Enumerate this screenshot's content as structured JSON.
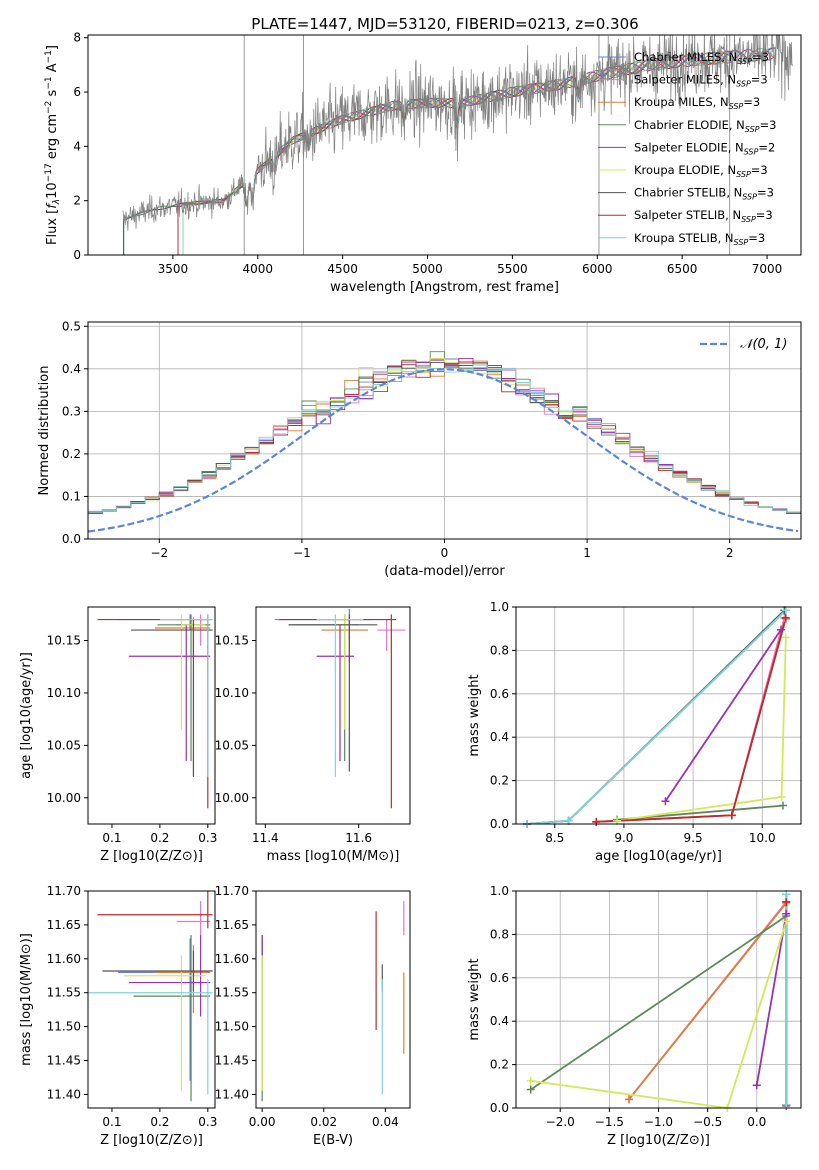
{
  "figure_title": "PLATE=1447, MJD=53120, FIBERID=0213, z=0.306",
  "chart_data": [
    {
      "id": "spectrum",
      "type": "line",
      "title": "PLATE=1447, MJD=53120, FIBERID=0213, z=0.306",
      "xlabel": "wavelength [Angstrom, rest frame]",
      "ylabel": "Flux [f_λ 10^-17 erg cm^-2 s^-1 A^-1]",
      "xlim": [
        3000,
        7200
      ],
      "ylim": [
        0,
        8.1
      ],
      "xticks": [
        3500,
        4000,
        4500,
        5000,
        5500,
        6000,
        6500,
        7000
      ],
      "yticks": [
        0,
        2,
        4,
        6,
        8
      ],
      "grid": false,
      "legend_position": "right",
      "series": [
        {
          "name": "Chabrier MILES, N_SSP=3",
          "color": "#6a7fdb"
        },
        {
          "name": "Salpeter MILES, N_SSP=3",
          "color": "#e377c2"
        },
        {
          "name": "Kroupa MILES, N_SSP=3",
          "color": "#e07b39"
        },
        {
          "name": "Chabrier ELODIE, N_SSP=3",
          "color": "#5a8a5a"
        },
        {
          "name": "Salpeter ELODIE, N_SSP=2",
          "color": "#9b30b0"
        },
        {
          "name": "Kroupa ELODIE, N_SSP=3",
          "color": "#d4e85a"
        },
        {
          "name": "Chabrier STELIB, N_SSP=3",
          "color": "#555555"
        },
        {
          "name": "Salpeter STELIB, N_SSP=3",
          "color": "#c0282d"
        },
        {
          "name": "Kroupa STELIB, N_SSP=3",
          "color": "#7fd4d4"
        }
      ],
      "data_color": "#808080",
      "continuum": [
        [
          3200,
          1.3
        ],
        [
          3400,
          1.7
        ],
        [
          3600,
          1.9
        ],
        [
          3800,
          2.0
        ],
        [
          4000,
          3.1
        ],
        [
          4200,
          4.2
        ],
        [
          4500,
          5.0
        ],
        [
          4800,
          5.5
        ],
        [
          5000,
          5.6
        ],
        [
          5200,
          5.6
        ],
        [
          5500,
          6.0
        ],
        [
          5800,
          6.3
        ],
        [
          6000,
          6.6
        ],
        [
          6300,
          7.0
        ],
        [
          6600,
          7.2
        ],
        [
          7000,
          7.4
        ]
      ]
    },
    {
      "id": "residuals",
      "type": "histogram",
      "xlabel": "(data-model)/error",
      "ylabel": "Normed distribution",
      "xlim": [
        -2.5,
        2.5
      ],
      "ylim": [
        0,
        0.51
      ],
      "xticks": [
        -2,
        -1,
        0,
        1,
        2
      ],
      "yticks": [
        0.0,
        0.1,
        0.2,
        0.3,
        0.4,
        0.5
      ],
      "grid": true,
      "legend_position": "top-right",
      "reference_curve": {
        "name": "N(0,1)",
        "color": "#5b86d9",
        "mean": 0,
        "sigma": 1
      },
      "bin_width": 0.1
    },
    {
      "id": "age_vs_Z",
      "type": "scatter",
      "xlabel": "Z [log10(Z/Z⊙)]",
      "ylabel": "age [log10(age/yr)]",
      "xlim": [
        0.05,
        0.315
      ],
      "ylim": [
        9.975,
        10.182
      ],
      "xticks": [
        0.1,
        0.2,
        0.3
      ],
      "yticks": [
        10.0,
        10.05,
        10.1,
        10.15
      ],
      "grid": false,
      "points": [
        {
          "x": 0.263,
          "y": 10.17,
          "xerr": [
            0.15,
            0.04
          ],
          "yerr": [
            0.01,
            0.005
          ],
          "color": "#6a7fdb"
        },
        {
          "x": 0.285,
          "y": 10.165,
          "xerr": [
            0.05,
            0.02
          ],
          "yerr": [
            0.02,
            0.01
          ],
          "color": "#e377c2"
        },
        {
          "x": 0.27,
          "y": 10.162,
          "xerr": [
            0.08,
            0.035
          ],
          "yerr": [
            0.03,
            0.01
          ],
          "color": "#e07b39"
        },
        {
          "x": 0.265,
          "y": 10.165,
          "xerr": [
            0.07,
            0.04
          ],
          "yerr": [
            0.13,
            0.01
          ],
          "color": "#5a8a5a"
        },
        {
          "x": 0.255,
          "y": 10.135,
          "xerr": [
            0.12,
            0.05
          ],
          "yerr": [
            0.1,
            0.03
          ],
          "color": "#9b30b0"
        },
        {
          "x": 0.245,
          "y": 10.165,
          "xerr": [
            0.0,
            0.05
          ],
          "yerr": [
            0.1,
            0.01
          ],
          "color": "#d4e85a"
        },
        {
          "x": 0.27,
          "y": 10.16,
          "xerr": [
            0.13,
            0.04
          ],
          "yerr": [
            0.14,
            0.01
          ],
          "color": "#555555"
        },
        {
          "x": 0.3,
          "y": 10.17,
          "xerr": [
            0.23,
            0.01
          ],
          "yerr": [
            0.18,
            0.005
          ],
          "color": "#c0282d"
        },
        {
          "x": 0.3,
          "y": 10.17,
          "xerr": [
            0.1,
            0.01
          ],
          "yerr": [
            0.15,
            0.005
          ],
          "color": "#7fd4d4"
        }
      ]
    },
    {
      "id": "age_vs_mass",
      "type": "scatter",
      "xlabel": "mass [log10(M/M⊙)]",
      "ylabel": "",
      "xlim": [
        11.38,
        11.71
      ],
      "ylim": [
        9.975,
        10.182
      ],
      "xticks": [
        11.4,
        11.6
      ],
      "yticks": [
        10.0,
        10.05,
        10.1,
        10.15
      ],
      "grid": false,
      "points": [
        {
          "x": 11.58,
          "y": 10.17,
          "xerr": [
            0.16,
            0.05
          ],
          "yerr": [
            0.02,
            0.01
          ],
          "color": "#6a7fdb"
        },
        {
          "x": 11.66,
          "y": 10.16,
          "xerr": [
            0.02,
            0.04
          ],
          "yerr": [
            0.02,
            0.01
          ],
          "color": "#e377c2"
        },
        {
          "x": 11.58,
          "y": 10.16,
          "xerr": [
            0.06,
            0.04
          ],
          "yerr": [
            0.03,
            0.01
          ],
          "color": "#e07b39"
        },
        {
          "x": 11.57,
          "y": 10.165,
          "xerr": [
            0.12,
            0.03
          ],
          "yerr": [
            0.13,
            0.01
          ],
          "color": "#5a8a5a"
        },
        {
          "x": 11.56,
          "y": 10.135,
          "xerr": [
            0.05,
            0.03
          ],
          "yerr": [
            0.1,
            0.03
          ],
          "color": "#9b30b0"
        },
        {
          "x": 11.57,
          "y": 10.165,
          "xerr": [
            0.02,
            0.02
          ],
          "yerr": [
            0.1,
            0.01
          ],
          "color": "#d4e85a"
        },
        {
          "x": 11.58,
          "y": 10.165,
          "xerr": [
            0.13,
            0.06
          ],
          "yerr": [
            0.14,
            0.01
          ],
          "color": "#555555"
        },
        {
          "x": 11.67,
          "y": 10.17,
          "xerr": [
            0.24,
            0.01
          ],
          "yerr": [
            0.18,
            0.005
          ],
          "color": "#c0282d"
        },
        {
          "x": 11.55,
          "y": 10.17,
          "xerr": [
            0.04,
            0.06
          ],
          "yerr": [
            0.15,
            0.005
          ],
          "color": "#7fd4d4"
        }
      ]
    },
    {
      "id": "weight_vs_age",
      "type": "line",
      "xlabel": "age [log10(age/yr)]",
      "ylabel": "mass weight",
      "xlim": [
        8.22,
        10.28
      ],
      "ylim": [
        0,
        1.0
      ],
      "xticks": [
        8.5,
        9.0,
        9.5,
        10.0
      ],
      "yticks": [
        0.0,
        0.2,
        0.4,
        0.6,
        0.8,
        1.0
      ],
      "grid": true,
      "series": [
        {
          "color": "#6a7fdb",
          "x": [
            8.3,
            8.6,
            10.17
          ],
          "y": [
            0.0,
            0.015,
            0.985
          ]
        },
        {
          "color": "#e377c2",
          "x": [
            8.8,
            9.78,
            10.16
          ],
          "y": [
            0.01,
            0.04,
            0.95
          ]
        },
        {
          "color": "#e07b39",
          "x": [
            8.8,
            9.78,
            10.17
          ],
          "y": [
            0.01,
            0.04,
            0.945
          ]
        },
        {
          "color": "#5a8a5a",
          "x": [
            8.95,
            10.15
          ],
          "y": [
            0.02,
            0.085
          ]
        },
        {
          "color": "#9b30b0",
          "x": [
            9.3,
            10.135
          ],
          "y": [
            0.105,
            0.895
          ]
        },
        {
          "color": "#d4e85a",
          "x": [
            8.95,
            10.14,
            10.17
          ],
          "y": [
            0.015,
            0.125,
            0.86
          ]
        },
        {
          "color": "#555555",
          "x": [
            8.3,
            8.6,
            10.16
          ],
          "y": [
            0.0,
            0.015,
            0.985
          ]
        },
        {
          "color": "#c0282d",
          "x": [
            8.8,
            9.78,
            10.17
          ],
          "y": [
            0.01,
            0.04,
            0.95
          ]
        },
        {
          "color": "#7fd4d4",
          "x": [
            8.3,
            8.6,
            10.17
          ],
          "y": [
            0.0,
            0.015,
            0.985
          ]
        }
      ]
    },
    {
      "id": "mass_vs_Z",
      "type": "scatter",
      "xlabel": "Z [log10(Z/Z⊙)]",
      "ylabel": "mass [log10(M/M⊙)]",
      "xlim": [
        0.05,
        0.315
      ],
      "ylim": [
        11.38,
        11.7
      ],
      "xticks": [
        0.1,
        0.2,
        0.3
      ],
      "yticks": [
        11.4,
        11.45,
        11.5,
        11.55,
        11.6,
        11.65,
        11.7
      ],
      "grid": false,
      "points": [
        {
          "x": 0.263,
          "y": 11.58,
          "xerr": [
            0.15,
            0.04
          ],
          "yerr": [
            0.16,
            0.05
          ],
          "color": "#6a7fdb"
        },
        {
          "x": 0.285,
          "y": 11.655,
          "xerr": [
            0.05,
            0.02
          ],
          "yerr": [
            0.02,
            0.03
          ],
          "color": "#e377c2"
        },
        {
          "x": 0.27,
          "y": 11.58,
          "xerr": [
            0.08,
            0.035
          ],
          "yerr": [
            0.06,
            0.04
          ],
          "color": "#e07b39"
        },
        {
          "x": 0.265,
          "y": 11.545,
          "xerr": [
            0.12,
            0.04
          ],
          "yerr": [
            0.155,
            0.09
          ],
          "color": "#5a8a5a"
        },
        {
          "x": 0.285,
          "y": 11.565,
          "xerr": [
            0.15,
            0.02
          ],
          "yerr": [
            0.05,
            0.07
          ],
          "color": "#9b30b0"
        },
        {
          "x": 0.245,
          "y": 11.575,
          "xerr": [
            0.12,
            0.05
          ],
          "yerr": [
            0.17,
            0.03
          ],
          "color": "#d4e85a"
        },
        {
          "x": 0.27,
          "y": 11.582,
          "xerr": [
            0.19,
            0.04
          ],
          "yerr": [
            0.03,
            0.03
          ],
          "color": "#555555"
        },
        {
          "x": 0.3,
          "y": 11.665,
          "xerr": [
            0.23,
            0.01
          ],
          "yerr": [
            0.02,
            0.04
          ],
          "color": "#c0282d"
        },
        {
          "x": 0.3,
          "y": 11.55,
          "xerr": [
            0.25,
            0.01
          ],
          "yerr": [
            0.15,
            0.02
          ],
          "color": "#7fd4d4"
        }
      ]
    },
    {
      "id": "mass_vs_ebv",
      "type": "scatter",
      "xlabel": "E(B-V)",
      "ylabel": "",
      "xlim": [
        -0.002,
        0.048
      ],
      "ylim": [
        11.38,
        11.7
      ],
      "xticks": [
        0.0,
        0.02,
        0.04
      ],
      "yticks": [
        11.4,
        11.45,
        11.5,
        11.55,
        11.6,
        11.65,
        11.7
      ],
      "grid": false,
      "points": [
        {
          "x": 0.0,
          "y": 11.58,
          "yerr": [
            0.16,
            0.05
          ],
          "color": "#6a7fdb"
        },
        {
          "x": 0.046,
          "y": 11.655,
          "yerr": [
            0.02,
            0.03
          ],
          "color": "#e377c2"
        },
        {
          "x": 0.046,
          "y": 11.58,
          "yerr": [
            0.12,
            0.0
          ],
          "color": "#e07b39"
        },
        {
          "x": 0.0,
          "y": 11.545,
          "yerr": [
            0.155,
            0.09
          ],
          "color": "#5a8a5a"
        },
        {
          "x": 0.0,
          "y": 11.62,
          "yerr": [
            0.02,
            0.015
          ],
          "color": "#9b30b0"
        },
        {
          "x": 0.0,
          "y": 11.575,
          "yerr": [
            0.17,
            0.03
          ],
          "color": "#d4e85a"
        },
        {
          "x": 0.039,
          "y": 11.582,
          "yerr": [
            0.03,
            0.01
          ],
          "color": "#555555"
        },
        {
          "x": 0.037,
          "y": 11.58,
          "yerr": [
            0.085,
            0.09
          ],
          "color": "#c0282d"
        },
        {
          "x": 0.039,
          "y": 11.55,
          "yerr": [
            0.15,
            0.02
          ],
          "color": "#7fd4d4"
        }
      ]
    },
    {
      "id": "weight_vs_Z",
      "type": "line",
      "xlabel": "Z [log10(Z/Z⊙)]",
      "ylabel": "mass weight",
      "xlim": [
        -2.45,
        0.45
      ],
      "ylim": [
        0,
        1.0
      ],
      "xticks": [
        -2.0,
        -1.5,
        -1.0,
        -0.5,
        0.0
      ],
      "yticks": [
        0.0,
        0.2,
        0.4,
        0.6,
        0.8,
        1.0
      ],
      "grid": true,
      "series": [
        {
          "color": "#6a7fdb",
          "x": [
            0.3,
            0.3
          ],
          "y": [
            0.015,
            0.985
          ]
        },
        {
          "color": "#e377c2",
          "x": [
            -1.3,
            0.3
          ],
          "y": [
            0.04,
            0.95
          ]
        },
        {
          "color": "#e07b39",
          "x": [
            -1.3,
            0.3
          ],
          "y": [
            0.04,
            0.945
          ]
        },
        {
          "color": "#5a8a5a",
          "x": [
            -2.3,
            0.3
          ],
          "y": [
            0.085,
            0.885
          ]
        },
        {
          "color": "#9b30b0",
          "x": [
            0.0,
            0.3
          ],
          "y": [
            0.105,
            0.895
          ]
        },
        {
          "color": "#d4e85a",
          "x": [
            -2.3,
            -0.3,
            0.3
          ],
          "y": [
            0.125,
            0.0,
            0.86
          ]
        },
        {
          "color": "#555555",
          "x": [
            0.3,
            0.3
          ],
          "y": [
            0.015,
            0.985
          ]
        },
        {
          "color": "#c0282d",
          "x": [
            0.3,
            0.3
          ],
          "y": [
            0.01,
            0.95
          ]
        },
        {
          "color": "#7fd4d4",
          "x": [
            0.3,
            0.3
          ],
          "y": [
            0.015,
            0.985
          ]
        }
      ]
    }
  ]
}
